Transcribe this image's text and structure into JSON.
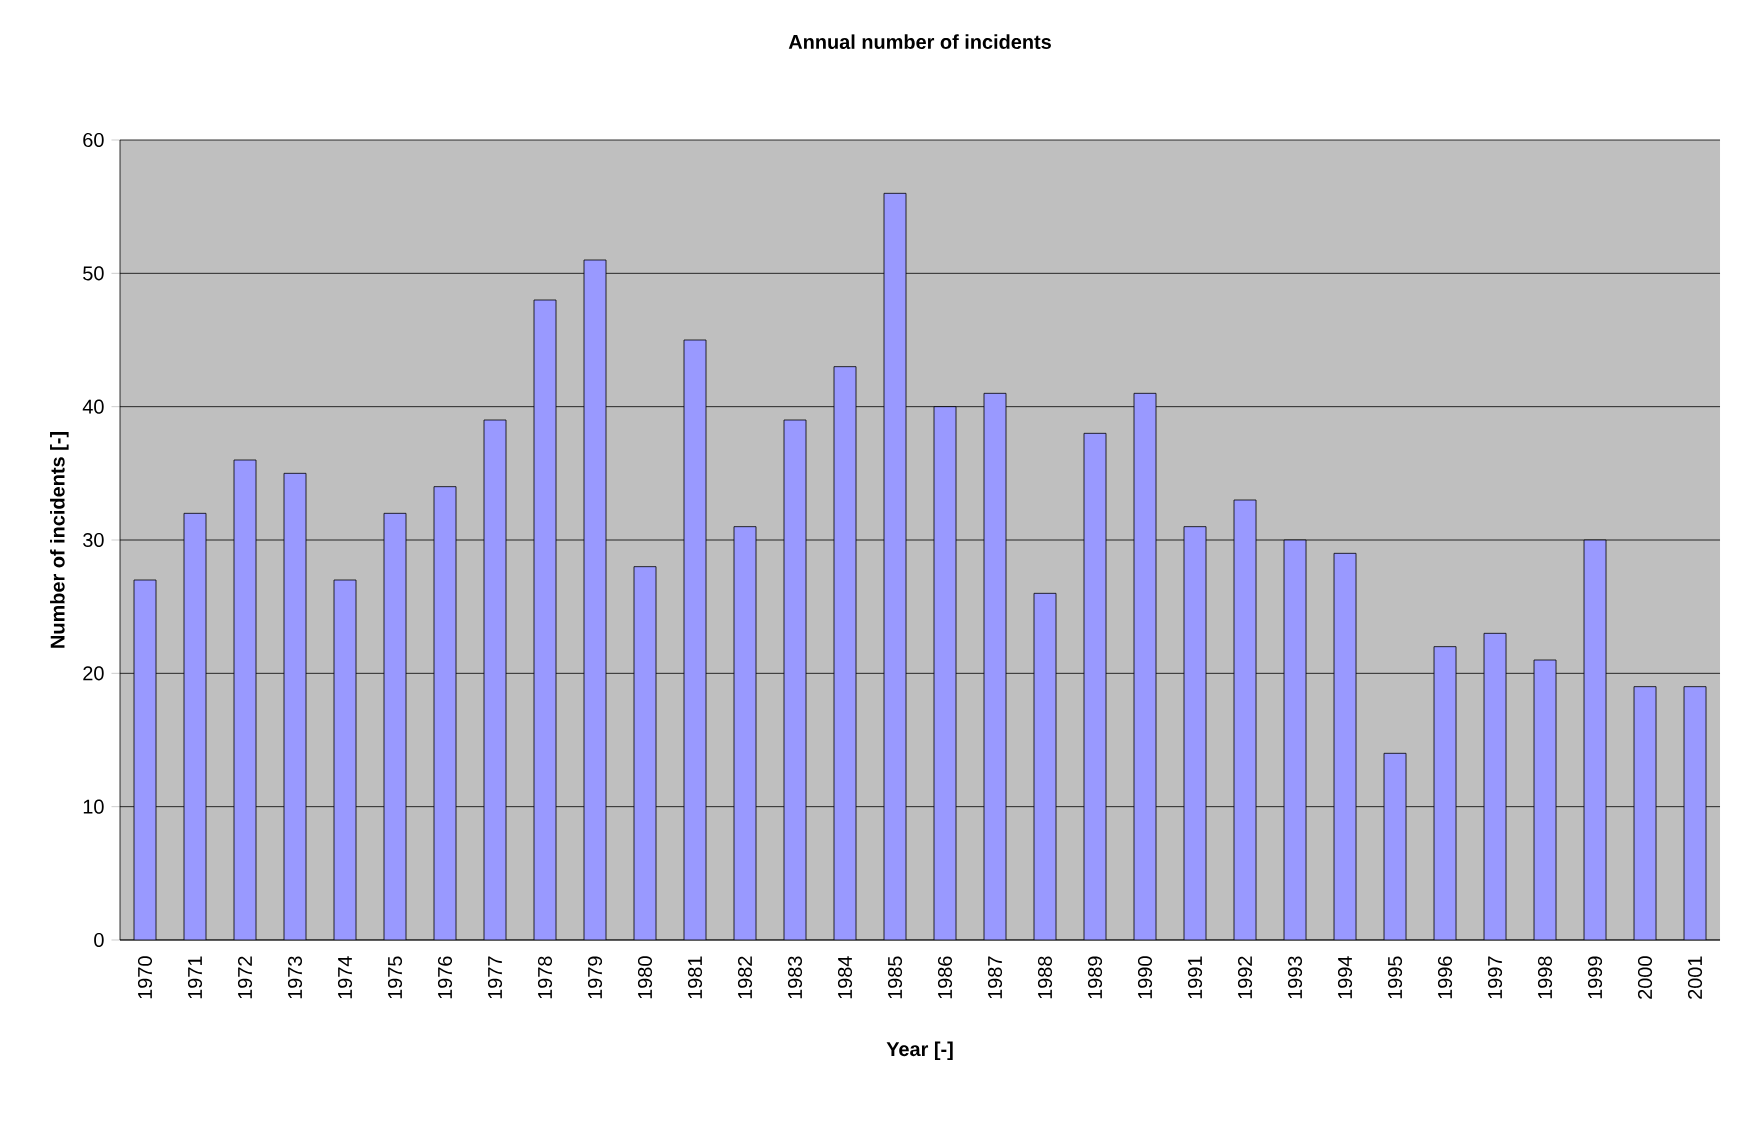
{
  "chart_data": {
    "type": "bar",
    "title": "Annual number of incidents",
    "xlabel": "Year [-]",
    "ylabel": "Number of incidents [-]",
    "categories": [
      "1970",
      "1971",
      "1972",
      "1973",
      "1974",
      "1975",
      "1976",
      "1977",
      "1978",
      "1979",
      "1980",
      "1981",
      "1982",
      "1983",
      "1984",
      "1985",
      "1986",
      "1987",
      "1988",
      "1989",
      "1990",
      "1991",
      "1992",
      "1993",
      "1994",
      "1995",
      "1996",
      "1997",
      "1998",
      "1999",
      "2000",
      "2001"
    ],
    "values": [
      27,
      32,
      36,
      35,
      27,
      32,
      34,
      39,
      48,
      51,
      28,
      45,
      31,
      39,
      43,
      56,
      40,
      41,
      26,
      38,
      41,
      31,
      33,
      30,
      29,
      14,
      22,
      23,
      21,
      30,
      19,
      19
    ],
    "color": "#9999ff",
    "ylim": [
      0,
      60
    ],
    "yticks": [
      0,
      10,
      20,
      30,
      40,
      50,
      60
    ],
    "grid": "y"
  }
}
